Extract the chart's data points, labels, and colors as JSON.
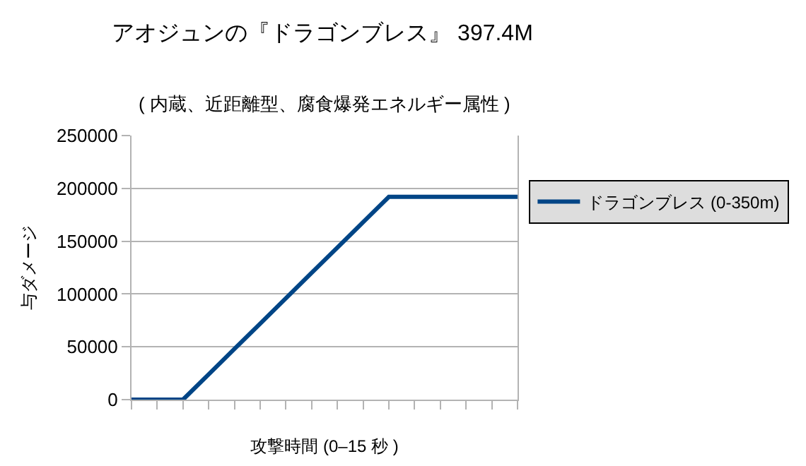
{
  "chart_data": {
    "type": "line",
    "title": "アオジュンの『ドラゴンブレス』 397.4M",
    "subtitle": "( 内蔵、近距離型、腐食爆発エネルギー属性 )",
    "xlabel": "攻撃時間 (0–15 秒 )",
    "ylabel": "与ダメージ",
    "categories": [
      null,
      null,
      null,
      null,
      null,
      null,
      null,
      null,
      null,
      null,
      null,
      null,
      null,
      null,
      null,
      null
    ],
    "series": [
      {
        "name": "ドラゴンブレス (0-350m)",
        "color": "#004586",
        "values": [
          0,
          0,
          0,
          24000,
          48000,
          72000,
          96000,
          120000,
          144000,
          168000,
          192000,
          192000,
          192000,
          192000,
          192000,
          192000
        ]
      }
    ],
    "ylim": [
      0,
      250000
    ],
    "yticks": [
      0,
      50000,
      100000,
      150000,
      200000,
      250000
    ],
    "grid": "y",
    "legend": "right",
    "marker": "none",
    "line_style": "solid"
  }
}
